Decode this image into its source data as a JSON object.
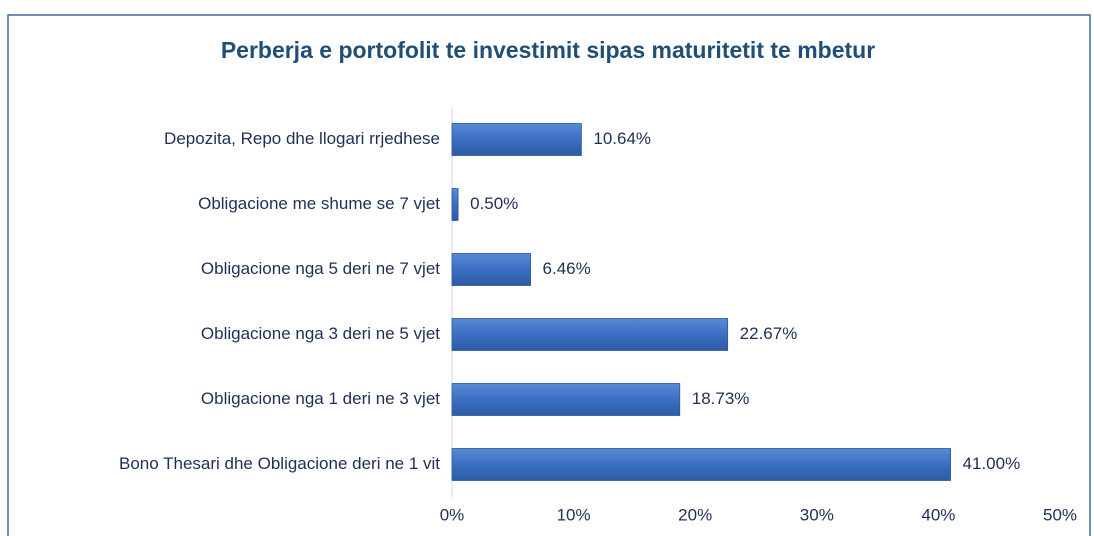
{
  "chart_data": {
    "type": "bar",
    "orientation": "horizontal",
    "title": "Perberja e portofolit te investimit sipas maturitetit te mbetur",
    "categories": [
      "Depozita, Repo dhe llogari rrjedhese",
      "Obligacione me shume se 7 vjet",
      "Obligacione nga 5 deri ne 7 vjet",
      "Obligacione nga 3 deri ne 5 vjet",
      "Obligacione nga 1 deri ne 3 vjet",
      "Bono Thesari dhe Obligacione deri ne 1 vit"
    ],
    "values": [
      10.64,
      0.5,
      6.46,
      22.67,
      18.73,
      41.0
    ],
    "value_labels": [
      "10.64%",
      "0.50%",
      "6.46%",
      "22.67%",
      "18.73%",
      "41.00%"
    ],
    "color": "#3b6fc1",
    "xlim": [
      0,
      50
    ],
    "xticks": [
      {
        "value": 0,
        "label": "0%"
      },
      {
        "value": 10,
        "label": "10%"
      },
      {
        "value": 20,
        "label": "20%"
      },
      {
        "value": 30,
        "label": "30%"
      },
      {
        "value": 40,
        "label": "40%"
      },
      {
        "value": 50,
        "label": "50%"
      }
    ],
    "grid": false
  }
}
